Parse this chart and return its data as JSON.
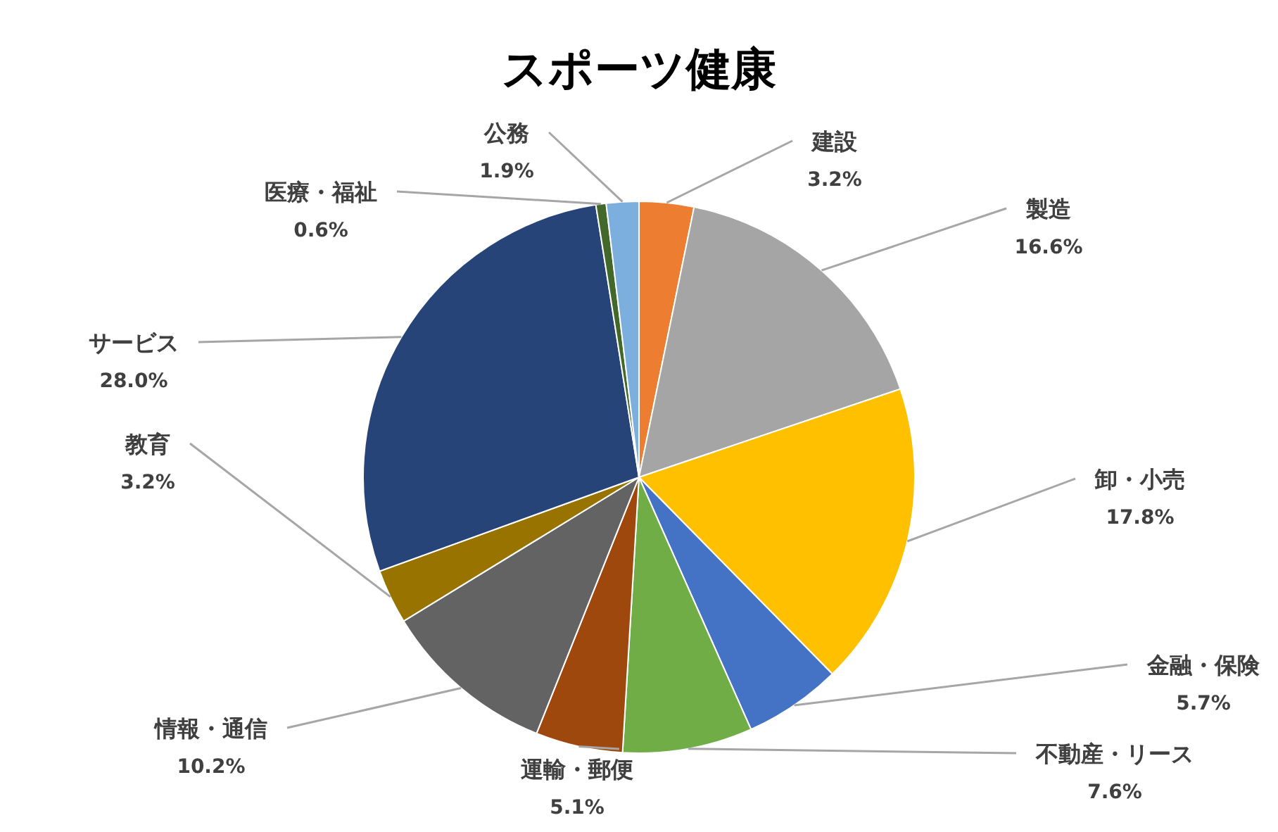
{
  "chart_data": {
    "type": "pie",
    "title": "スポーツ健康",
    "categories": [
      "建設",
      "製造",
      "卸・小売",
      "金融・保険",
      "不動産・リース",
      "運輸・郵便",
      "情報・通信",
      "教育",
      "サービス",
      "医療・福祉",
      "公務"
    ],
    "values": [
      3.2,
      16.6,
      17.8,
      5.7,
      7.6,
      5.1,
      10.2,
      3.2,
      28.0,
      0.6,
      1.9
    ],
    "colors": [
      "#ed7d31",
      "#a5a5a5",
      "#ffc000",
      "#4472c4",
      "#70ad47",
      "#9e480e",
      "#636363",
      "#997300",
      "#264478",
      "#43682b",
      "#7cafdd"
    ],
    "value_labels": [
      "3.2%",
      "16.6%",
      "17.8%",
      "5.7%",
      "7.6%",
      "5.1%",
      "10.2%",
      "3.2%",
      "28.0%",
      "0.6%",
      "1.9%"
    ]
  }
}
